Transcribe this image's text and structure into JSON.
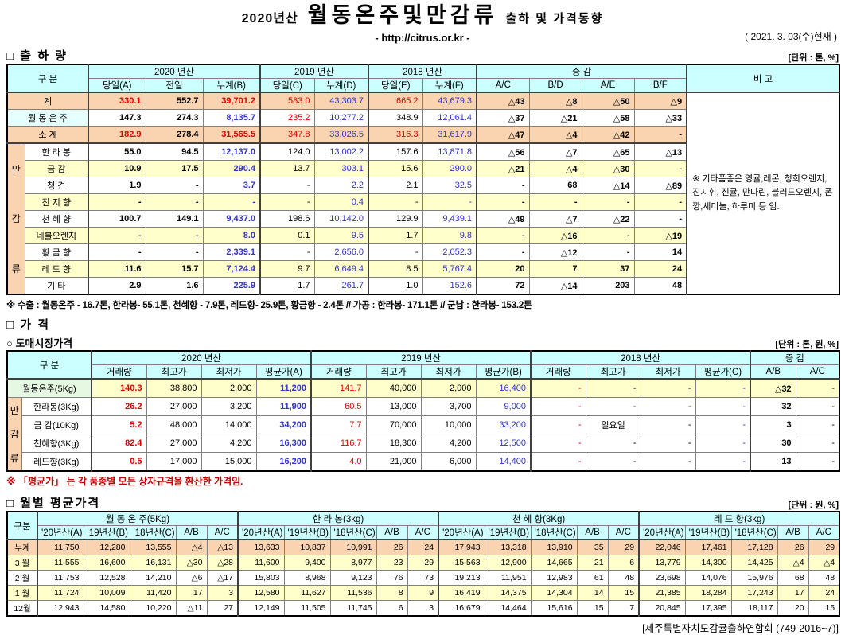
{
  "colors": {
    "header_bg": "#CCFFFF",
    "band_peach": "#FAD3B0",
    "band_yellow": "#FFFFCC",
    "label_cyan": "#E6FFFF",
    "label_green": "#E7F8E2",
    "value_red": "#E00000",
    "value_blue": "#3333CC",
    "note_red": "#C00000"
  },
  "title": {
    "year": "2020년산",
    "main": "월동온주및만감류",
    "suffix": "출하 및 가격동향",
    "url": "- http://citrus.or.kr -",
    "date": "( 2021. 3. 03(수)현재 )"
  },
  "shipment": {
    "section_title": "□ 출 하 량",
    "unit": "[단위 : 톤, %]",
    "gubun": "구      분",
    "groups": [
      "2020 년산",
      "2019 년산",
      "2018 년산",
      "증      감"
    ],
    "bigo": "비  고",
    "cols": [
      "당일(A)",
      "전일",
      "누계(B)",
      "당일(C)",
      "누계(D)",
      "당일(E)",
      "누계(F)",
      "A/C",
      "B/D",
      "A/E",
      "B/F"
    ],
    "side_label": "만감류",
    "note": "※ 기타품종은 영귤,레몬, 청희오렌지, 진지휘, 진귤, 만다린, 블러드오렌지, 폰깡,세미놀, 하루미 등 임.",
    "footnote": "※ 수출 : 월동온주 - 16.7톤, 한라봉- 55.1톤, 천혜향 - 7.9톤, 레드향- 25.9톤, 황금향 - 2.4톤  //  가공 : 한라봉- 171.1톤 //  군납 : 한라봉- 153.2톤",
    "styles": {
      "total": [
        "rB",
        "kB",
        "rB",
        "r",
        "b",
        "r",
        "b",
        "kB",
        "kB",
        "kB",
        "kB"
      ],
      "mid": [
        "kB",
        "kB",
        "bB",
        "r",
        "b",
        "k",
        "b",
        "kB",
        "kB",
        "kB",
        "kB"
      ],
      "item": [
        "kB",
        "kB",
        "bB",
        "k",
        "b",
        "k",
        "b",
        "kB",
        "kB",
        "kB",
        "kB"
      ]
    },
    "rows": [
      {
        "label": "계",
        "type": "total",
        "bg": "peach",
        "cells": [
          "330.1",
          "552.7",
          "39,701.2",
          "583.0",
          "43,303.7",
          "665.2",
          "43,679.3",
          "△43",
          "△8",
          "△50",
          "△9"
        ]
      },
      {
        "label": "월 동 온 주",
        "type": "mid",
        "bg": "white",
        "labbg": "cyan",
        "cells": [
          "147.3",
          "274.3",
          "8,135.7",
          "235.2",
          "10,277.2",
          "348.9",
          "12,061.4",
          "△37",
          "△21",
          "△58",
          "△33"
        ]
      },
      {
        "label": "소      계",
        "type": "total",
        "bg": "peach",
        "sep": true,
        "cells": [
          "182.9",
          "278.4",
          "31,565.5",
          "347.8",
          "33,026.5",
          "316.3",
          "31,617.9",
          "△47",
          "△4",
          "△42",
          "-"
        ]
      },
      {
        "label": "한 라 봉",
        "type": "item",
        "bg": "white",
        "cells": [
          "55.0",
          "94.5",
          "12,137.0",
          "124.0",
          "13,002.2",
          "157.6",
          "13,871.8",
          "△56",
          "△7",
          "△65",
          "△13"
        ]
      },
      {
        "label": "금      감",
        "type": "item",
        "bg": "yellow",
        "cells": [
          "10.9",
          "17.5",
          "290.4",
          "13.7",
          "303.1",
          "15.6",
          "290.0",
          "△21",
          "△4",
          "△30",
          "-"
        ]
      },
      {
        "label": "청      견",
        "type": "item",
        "bg": "white",
        "cells": [
          "1.9",
          "-",
          "3.7",
          "-",
          "2.2",
          "2.1",
          "32.5",
          "-",
          "68",
          "△14",
          "△89"
        ]
      },
      {
        "label": "진 지 향",
        "type": "item",
        "bg": "yellow",
        "cells": [
          "-",
          "-",
          "-",
          "-",
          "0.4",
          "-",
          "-",
          "-",
          "-",
          "-",
          "-"
        ]
      },
      {
        "label": "천 혜 향",
        "type": "item",
        "bg": "white",
        "cells": [
          "100.7",
          "149.1",
          "9,437.0",
          "198.6",
          "10,142.0",
          "129.9",
          "9,439.1",
          "△49",
          "△7",
          "△22",
          "-"
        ]
      },
      {
        "label": "네블오렌지",
        "type": "item",
        "bg": "yellow",
        "cells": [
          "-",
          "-",
          "8.0",
          "0.1",
          "9.5",
          "1.7",
          "9.8",
          "-",
          "△16",
          "-",
          "△19"
        ]
      },
      {
        "label": "황 금 향",
        "type": "item",
        "bg": "white",
        "cells": [
          "-",
          "-",
          "2,339.1",
          "-",
          "2,656.0",
          "-",
          "2,052.3",
          "-",
          "△12",
          "-",
          "14"
        ]
      },
      {
        "label": "레 드 향",
        "type": "item",
        "bg": "yellow",
        "cells": [
          "11.6",
          "15.7",
          "7,124.4",
          "9.7",
          "6,649.4",
          "8.5",
          "5,767.4",
          "20",
          "7",
          "37",
          "24"
        ]
      },
      {
        "label": "기      타",
        "type": "item",
        "bg": "white",
        "cells": [
          "2.9",
          "1.6",
          "225.9",
          "1.7",
          "261.7",
          "1.0",
          "152.6",
          "72",
          "△14",
          "203",
          "48"
        ]
      }
    ]
  },
  "price": {
    "section_title": "□ 가      격",
    "sub_title": "○ 도매시장가격",
    "unit": "[단위 : 톤, 원, %]",
    "gubun": "구      분",
    "groups": [
      "2020 년산",
      "2019 년산",
      "2018 년산",
      "증  감"
    ],
    "cols": [
      "거래량",
      "최고가",
      "최저가",
      "평균가(A)",
      "거래량",
      "최고가",
      "최저가",
      "평균가(B)",
      "거래량",
      "최고가",
      "최저가",
      "평균가(C)",
      "A/B",
      "A/C"
    ],
    "side_label": "만감류",
    "row_style": [
      "rB",
      "k",
      "k",
      "bB",
      "r",
      "k",
      "k",
      "b",
      "r",
      "k",
      "k",
      "b",
      "kB",
      "k"
    ],
    "note": "※ 「평균가」 는 각 품종별 모든 상자규격을 환산한 가격임.",
    "rows": [
      {
        "label": "월동온주(5Kg)",
        "bg": "yellow",
        "labbg": "green",
        "cells": [
          "140.3",
          "38,800",
          "2,000",
          "11,200",
          "141.7",
          "40,000",
          "2,000",
          "16,400",
          "-",
          "-",
          "-",
          "-",
          "△32",
          "-"
        ]
      },
      {
        "label": "한라봉(3Kg)",
        "bg": "white",
        "cells": [
          "26.2",
          "27,000",
          "3,200",
          "11,900",
          "60.5",
          "13,000",
          "3,700",
          "9,000",
          "-",
          "-",
          "-",
          "-",
          "32",
          "-"
        ]
      },
      {
        "label": "금 감(10Kg)",
        "bg": "white",
        "cells": [
          "5.2",
          "48,000",
          "14,000",
          "34,200",
          "7.7",
          "70,000",
          "10,000",
          "33,200",
          "-",
          "일요일",
          "-",
          "-",
          "3",
          "-"
        ]
      },
      {
        "label": "천혜향(3Kg)",
        "bg": "white",
        "cells": [
          "82.4",
          "27,000",
          "4,200",
          "16,300",
          "116.7",
          "18,300",
          "4,200",
          "12,500",
          "-",
          "-",
          "-",
          "-",
          "30",
          "-"
        ]
      },
      {
        "label": "레드향(3Kg)",
        "bg": "white",
        "cells": [
          "0.5",
          "17,000",
          "15,000",
          "16,200",
          "4.0",
          "21,000",
          "6,000",
          "14,400",
          "-",
          "-",
          "-",
          "-",
          "13",
          "-"
        ]
      }
    ]
  },
  "monthly": {
    "section_title": "□ 월별 평균가격",
    "unit": "[단위 : 원, %]",
    "gubun": "구분",
    "groups": [
      "월 동 온 주(5Kg)",
      "한 라 봉(3kg)",
      "천 혜 향(3Kg)",
      "레 드 향(3kg)"
    ],
    "cols": [
      "'20년산(A)",
      "'19년산(B)",
      "'18년산(C)",
      "A/B",
      "A/C"
    ],
    "rows": [
      {
        "label": "누계",
        "bg": "peach",
        "cells": [
          "11,750",
          "12,280",
          "13,555",
          "△4",
          "△13",
          "13,633",
          "10,837",
          "10,991",
          "26",
          "24",
          "17,943",
          "13,318",
          "13,910",
          "35",
          "29",
          "22,046",
          "17,461",
          "17,128",
          "26",
          "29"
        ]
      },
      {
        "label": "3 월",
        "bg": "yellow",
        "cells": [
          "11,555",
          "16,600",
          "16,131",
          "△30",
          "△28",
          "11,600",
          "9,400",
          "8,977",
          "23",
          "29",
          "15,563",
          "12,900",
          "14,665",
          "21",
          "6",
          "13,779",
          "14,300",
          "14,425",
          "△4",
          "△4"
        ]
      },
      {
        "label": "2 월",
        "bg": "white",
        "cells": [
          "11,753",
          "12,528",
          "14,210",
          "△6",
          "△17",
          "15,803",
          "8,968",
          "9,123",
          "76",
          "73",
          "19,213",
          "11,951",
          "12,983",
          "61",
          "48",
          "23,698",
          "14,076",
          "15,976",
          "68",
          "48"
        ]
      },
      {
        "label": "1 월",
        "bg": "yellow",
        "cells": [
          "11,724",
          "10,009",
          "11,420",
          "17",
          "3",
          "12,580",
          "11,627",
          "11,536",
          "8",
          "9",
          "16,419",
          "14,375",
          "14,304",
          "14",
          "15",
          "21,385",
          "18,284",
          "17,243",
          "17",
          "24"
        ]
      },
      {
        "label": "12월",
        "bg": "white",
        "cells": [
          "12,943",
          "14,580",
          "10,220",
          "△11",
          "27",
          "12,149",
          "11,505",
          "11,745",
          "6",
          "3",
          "16,679",
          "14,464",
          "15,616",
          "15",
          "7",
          "20,845",
          "17,395",
          "18,117",
          "20",
          "15"
        ]
      }
    ]
  },
  "footer": "[제주특별자치도감귤출하연합회 (749-2016~7)]"
}
